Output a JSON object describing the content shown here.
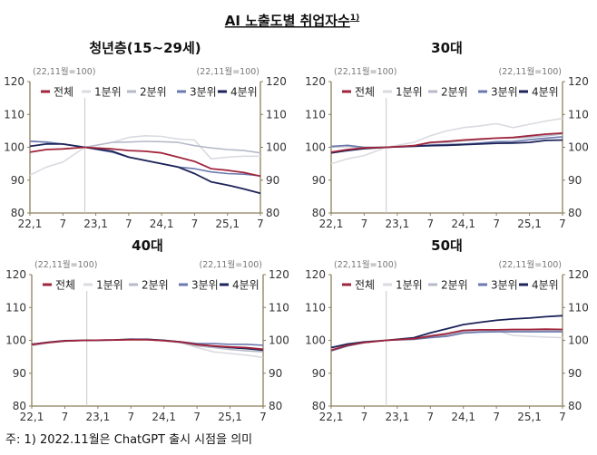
{
  "title": "AI 노출도별 취업자수",
  "title_superscript": "1)",
  "footnote": "주: 1) 2022.11월은 ChatGPT 출시 시점을 의미",
  "colors": {
    "전체": "#a0253c",
    "1분위": "#dadbe1",
    "2분위": "#b6bac9",
    "3분위": "#6b7aae",
    "4분위": "#1c2358",
    "axis": "#8c7f5c",
    "reference_line": "#c9c9c9"
  },
  "chart_data": [
    {
      "type": "line",
      "title": "청년층(15~29세)",
      "unit_left": "(22,11월=100)",
      "unit_right": "(22,11월=100)",
      "ylim": [
        80,
        120
      ],
      "yticks": [
        80,
        90,
        100,
        110,
        120
      ],
      "xticks": [
        {
          "x": "2022-01",
          "label": "22,1"
        },
        {
          "x": "2022-07",
          "label": "7"
        },
        {
          "x": "2023-01",
          "label": "23,1"
        },
        {
          "x": "2023-07",
          "label": "7"
        },
        {
          "x": "2024-01",
          "label": "24,1"
        },
        {
          "x": "2024-07",
          "label": "7"
        },
        {
          "x": "2025-01",
          "label": "25,1"
        },
        {
          "x": "2025-07",
          "label": "7"
        }
      ],
      "reference_x": "2022-11",
      "x": [
        "2022-01",
        "2022-04",
        "2022-07",
        "2022-11",
        "2023-04",
        "2023-07",
        "2023-10",
        "2024-01",
        "2024-04",
        "2024-07",
        "2024-10",
        "2025-01",
        "2025-04",
        "2025-07"
      ],
      "series": [
        {
          "name": "전체",
          "values": [
            98.5,
            99.3,
            99.5,
            100,
            99.5,
            99,
            98.8,
            98.3,
            97,
            95.7,
            93.5,
            93,
            92.3,
            91.2
          ]
        },
        {
          "name": "1분위",
          "values": [
            91.5,
            94,
            95.5,
            100,
            101.5,
            103,
            103.5,
            103.3,
            102.5,
            102.2,
            96.5,
            97,
            97.3,
            97.3
          ]
        },
        {
          "name": "2분위",
          "values": [
            102,
            101.5,
            101,
            100,
            101.5,
            101.6,
            101.8,
            101.7,
            101.5,
            100.5,
            99.8,
            99.3,
            99,
            98.3
          ]
        },
        {
          "name": "3분위",
          "values": [
            101.8,
            101.6,
            101,
            100,
            98.5,
            97,
            96,
            95,
            94,
            93.5,
            92.5,
            92,
            91.8,
            91.3
          ]
        },
        {
          "name": "4분위",
          "values": [
            100.3,
            101,
            101,
            100,
            98.8,
            97,
            96,
            95,
            94,
            92,
            89.5,
            88.5,
            87.3,
            86
          ]
        }
      ]
    },
    {
      "type": "line",
      "title": "30대",
      "unit_left": "(22,11월=100)",
      "unit_right": "(22,11월=100)",
      "ylim": [
        80,
        120
      ],
      "yticks": [
        80,
        90,
        100,
        110,
        120
      ],
      "xticks": [
        {
          "x": "2022-01",
          "label": "22,1"
        },
        {
          "x": "2022-07",
          "label": "7"
        },
        {
          "x": "2023-01",
          "label": "23,1"
        },
        {
          "x": "2023-07",
          "label": "7"
        },
        {
          "x": "2024-01",
          "label": "24,1"
        },
        {
          "x": "2024-07",
          "label": "7"
        },
        {
          "x": "2025-01",
          "label": "25,1"
        },
        {
          "x": "2025-07",
          "label": "7"
        }
      ],
      "reference_x": "2022-11",
      "x": [
        "2022-01",
        "2022-04",
        "2022-07",
        "2022-11",
        "2023-04",
        "2023-07",
        "2023-10",
        "2024-01",
        "2024-04",
        "2024-07",
        "2024-10",
        "2025-01",
        "2025-04",
        "2025-07"
      ],
      "series": [
        {
          "name": "전체",
          "values": [
            98.5,
            99.3,
            99.8,
            100,
            100.5,
            101.5,
            101.8,
            102.2,
            102.5,
            102.8,
            103,
            103.5,
            104,
            104.3
          ]
        },
        {
          "name": "1분위",
          "values": [
            95,
            96.5,
            97.5,
            100,
            101.5,
            103.5,
            105,
            106,
            106.5,
            107.2,
            106,
            107,
            108,
            108.8
          ]
        },
        {
          "name": "2분위",
          "values": [
            100,
            100.3,
            99.8,
            100,
            100.5,
            101.3,
            101.5,
            102,
            102.3,
            102.8,
            102.8,
            103,
            103.5,
            104
          ]
        },
        {
          "name": "3분위",
          "values": [
            100.3,
            100.6,
            100,
            100,
            100.3,
            100.7,
            100.8,
            101,
            101.3,
            101.7,
            101.8,
            102.3,
            102.8,
            103.2
          ]
        },
        {
          "name": "4분위",
          "values": [
            98.3,
            99,
            99.6,
            100,
            100.3,
            100.5,
            100.6,
            100.8,
            101,
            101.2,
            101.3,
            101.5,
            102.1,
            102.2
          ]
        }
      ]
    },
    {
      "type": "line",
      "title": "40대",
      "unit_left": "(22,11월=100)",
      "unit_right": "(22,11월=100)",
      "ylim": [
        80,
        120
      ],
      "yticks": [
        80,
        90,
        100,
        110,
        120
      ],
      "xticks": [
        {
          "x": "2022-01",
          "label": "22,1"
        },
        {
          "x": "2022-07",
          "label": "7"
        },
        {
          "x": "2023-01",
          "label": "23,1"
        },
        {
          "x": "2023-07",
          "label": "7"
        },
        {
          "x": "2024-01",
          "label": "24,1"
        },
        {
          "x": "2024-07",
          "label": "7"
        },
        {
          "x": "2025-01",
          "label": "25,1"
        },
        {
          "x": "2025-07",
          "label": "7"
        }
      ],
      "reference_x": "2022-11",
      "x": [
        "2022-01",
        "2022-04",
        "2022-07",
        "2022-11",
        "2023-04",
        "2023-07",
        "2023-10",
        "2024-01",
        "2024-04",
        "2024-07",
        "2024-10",
        "2025-01",
        "2025-04",
        "2025-07"
      ],
      "series": [
        {
          "name": "전체",
          "values": [
            98.7,
            99.3,
            99.8,
            100,
            100.1,
            100.2,
            100.2,
            99.9,
            99.5,
            98.7,
            98.3,
            98,
            97.8,
            97.3
          ]
        },
        {
          "name": "1분위",
          "values": [
            98.3,
            99.2,
            99.7,
            100,
            100,
            100.3,
            100.2,
            99.8,
            99.3,
            97.8,
            96.5,
            96,
            95.5,
            94.8
          ]
        },
        {
          "name": "2분위",
          "values": [
            98.5,
            99.3,
            99.8,
            100,
            100.1,
            100.4,
            100.2,
            99.9,
            99.3,
            98.3,
            97.8,
            97.2,
            96.8,
            96.5
          ]
        },
        {
          "name": "3분위",
          "values": [
            98.8,
            99.4,
            99.8,
            100,
            100.1,
            100.3,
            100.3,
            100,
            99.6,
            99,
            99,
            98.8,
            98.8,
            98.5
          ]
        },
        {
          "name": "4분위",
          "values": [
            98.8,
            99.4,
            99.9,
            100,
            100.1,
            100.3,
            100.3,
            100,
            99.5,
            98.8,
            98.2,
            97.8,
            97.5,
            97
          ]
        }
      ]
    },
    {
      "type": "line",
      "title": "50대",
      "unit_left": "(22,11월=100)",
      "unit_right": "(22,11월=100)",
      "ylim": [
        80,
        120
      ],
      "yticks": [
        80,
        90,
        100,
        110,
        120
      ],
      "xticks": [
        {
          "x": "2022-01",
          "label": "22,1"
        },
        {
          "x": "2022-07",
          "label": "7"
        },
        {
          "x": "2023-01",
          "label": "23,1"
        },
        {
          "x": "2023-07",
          "label": "7"
        },
        {
          "x": "2024-01",
          "label": "24,1"
        },
        {
          "x": "2024-07",
          "label": "7"
        },
        {
          "x": "2025-01",
          "label": "25,1"
        },
        {
          "x": "2025-07",
          "label": "7"
        }
      ],
      "reference_x": "2022-11",
      "x": [
        "2022-01",
        "2022-04",
        "2022-07",
        "2022-11",
        "2023-04",
        "2023-07",
        "2023-10",
        "2024-01",
        "2024-04",
        "2024-07",
        "2024-10",
        "2025-01",
        "2025-04",
        "2025-07"
      ],
      "series": [
        {
          "name": "전체",
          "values": [
            97,
            98.5,
            99.3,
            100,
            100.5,
            101.3,
            102,
            103,
            103.2,
            103.2,
            103.3,
            103.3,
            103.4,
            103.3
          ]
        },
        {
          "name": "1분위",
          "values": [
            97.3,
            98.7,
            99.5,
            100,
            100.5,
            101.5,
            102.3,
            103.2,
            103.3,
            103,
            101.5,
            101.2,
            101,
            100.8
          ]
        },
        {
          "name": "2분위",
          "values": [
            96.8,
            98.3,
            99.3,
            100,
            100.5,
            101,
            101.5,
            102.5,
            102.8,
            103,
            103,
            103,
            103,
            103
          ]
        },
        {
          "name": "3분위",
          "values": [
            96.8,
            98.3,
            99.3,
            100,
            100.3,
            100.8,
            101.2,
            102.2,
            102.5,
            102.6,
            102.6,
            102.6,
            102.6,
            102.6
          ]
        },
        {
          "name": "4분위",
          "values": [
            97.8,
            98.9,
            99.5,
            100,
            100.8,
            102.3,
            103.5,
            104.8,
            105.5,
            106.1,
            106.5,
            106.8,
            107.2,
            107.5
          ]
        }
      ]
    }
  ]
}
